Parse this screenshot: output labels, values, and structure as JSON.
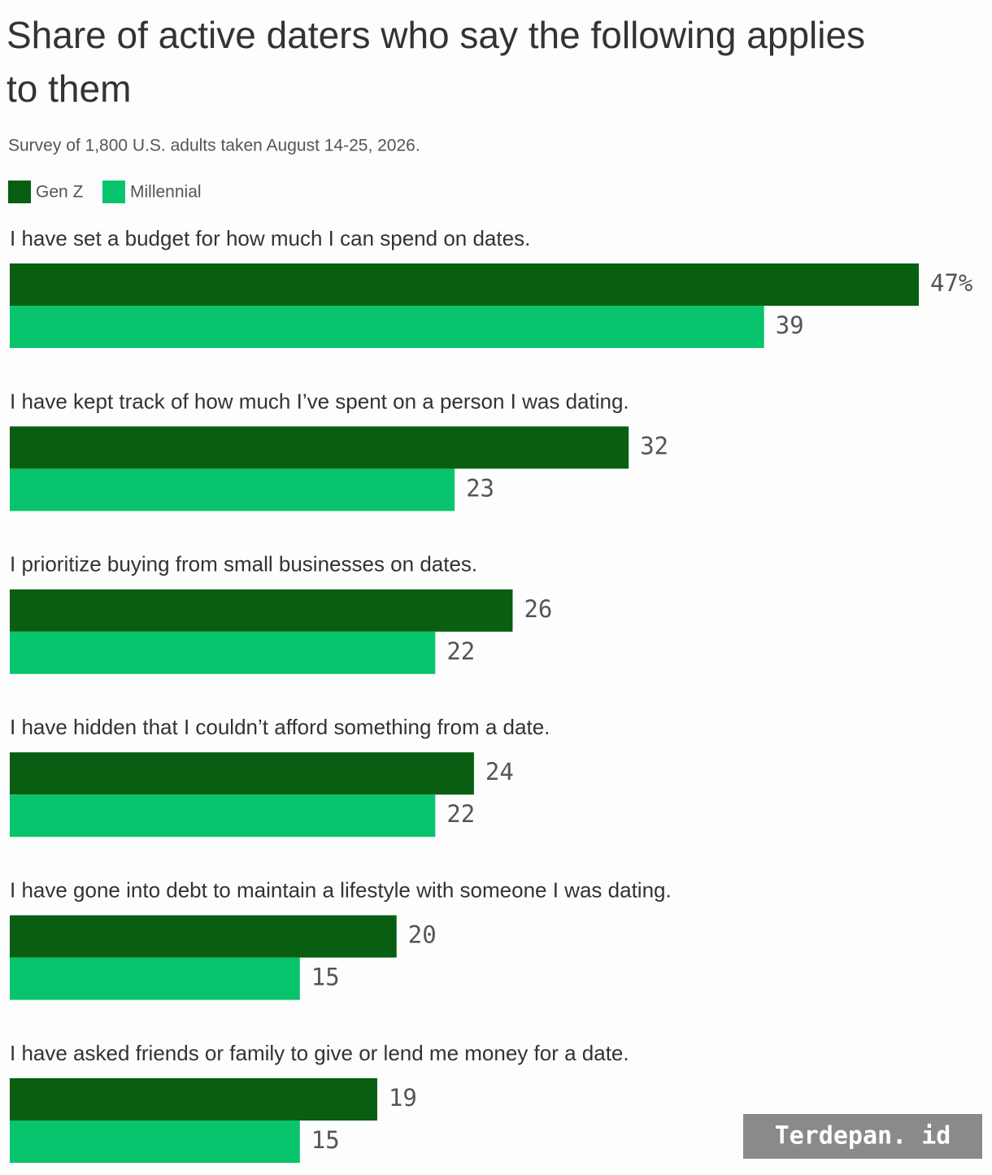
{
  "chart_data": {
    "type": "hbar",
    "title": "Share of active daters who say the following applies to them",
    "subtitle": "Survey of 1,800 U.S. adults taken August 14-25, 2026.",
    "categories": [
      "I have set a budget for how much I can spend on dates.",
      "I have kept track of how much I’ve spent on a person I was dating.",
      "I prioritize buying from small businesses on dates.",
      "I have hidden that I couldn’t afford something from a date.",
      "I have gone into debt to maintain a lifestyle with someone I was dating.",
      "I have asked friends or family to give or lend me money for a date."
    ],
    "series": [
      {
        "name": "Gen Z",
        "color": "#0a5e12",
        "values": [
          47,
          32,
          26,
          24,
          20,
          19
        ],
        "value_labels": [
          "47%",
          "32",
          "26",
          "24",
          "20",
          "19"
        ]
      },
      {
        "name": "Millennial",
        "color": "#08c46c",
        "values": [
          39,
          23,
          22,
          22,
          15,
          15
        ]
      }
    ],
    "watermark": "Terdepan. id"
  }
}
